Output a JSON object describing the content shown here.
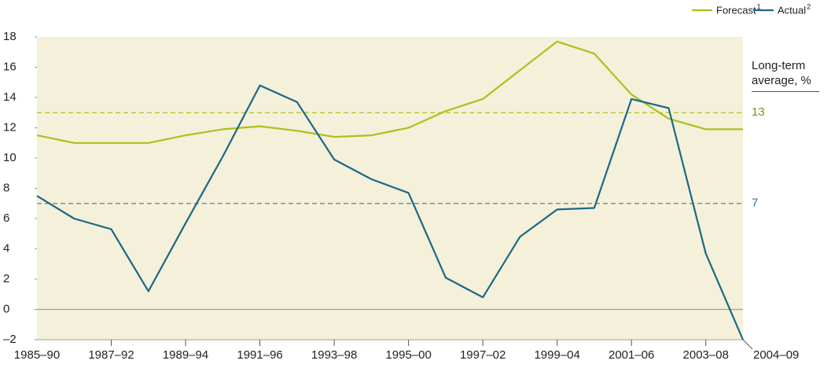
{
  "chart_data": {
    "type": "line",
    "categories": [
      "1985–90",
      null,
      "1987–92",
      null,
      "1989–94",
      null,
      "1991–96",
      null,
      "1993–98",
      null,
      "1995–00",
      null,
      "1997–02",
      null,
      "1999–04",
      null,
      "2001–06",
      null,
      "2003–08",
      "2004–09"
    ],
    "series": [
      {
        "name": "Forecast",
        "footnote": "1",
        "color": "#a9c21c",
        "values": [
          11.5,
          11.0,
          11.0,
          11.0,
          11.5,
          11.9,
          12.1,
          11.8,
          11.4,
          11.5,
          12.0,
          13.1,
          13.9,
          15.8,
          17.7,
          16.9,
          14.2,
          12.6,
          11.9,
          11.9
        ]
      },
      {
        "name": "Actual",
        "footnote": "2",
        "color": "#1b6886",
        "values": [
          7.5,
          6.0,
          5.3,
          1.2,
          5.7,
          10.1,
          14.8,
          13.7,
          9.9,
          8.6,
          7.7,
          2.1,
          0.8,
          4.8,
          6.6,
          6.7,
          13.9,
          13.3,
          3.7,
          -2.0
        ]
      }
    ],
    "ylim": [
      -2,
      18
    ],
    "yticks": [
      {
        "value": -2,
        "label": "–2"
      },
      0,
      2,
      4,
      6,
      8,
      10,
      12,
      14,
      16,
      18
    ],
    "reference_title": "Long-term average, %",
    "reference_lines": [
      {
        "value": 13,
        "color": "#a9c21c",
        "label_color": "#7d8f14"
      },
      {
        "value": 7,
        "color": "#4a8aa8",
        "label_color": "#2d7ea0"
      }
    ],
    "background": "#f4f0d9"
  }
}
